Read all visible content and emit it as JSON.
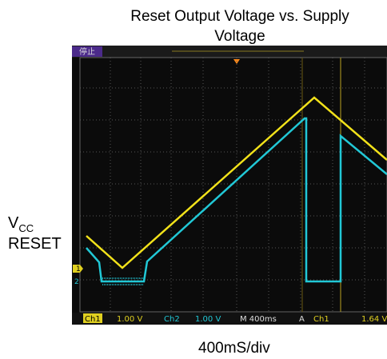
{
  "title": "Reset Output Voltage vs. Supply Voltage",
  "y_labels": {
    "vcc": {
      "main": "V",
      "sub": "CC"
    },
    "reset": "RESET"
  },
  "x_label": "400mS/div",
  "scope": {
    "status": "停止",
    "markers": [
      "1",
      "2"
    ],
    "readout": {
      "ch1": "Ch1",
      "ch1_scale": "1.00 V",
      "ch2": "Ch2",
      "ch2_scale": "1.00 V",
      "timebase": "M 400ms",
      "trigger_mode": "A",
      "trigger_source": "Ch1",
      "trigger_level": "1.64 V"
    }
  }
}
